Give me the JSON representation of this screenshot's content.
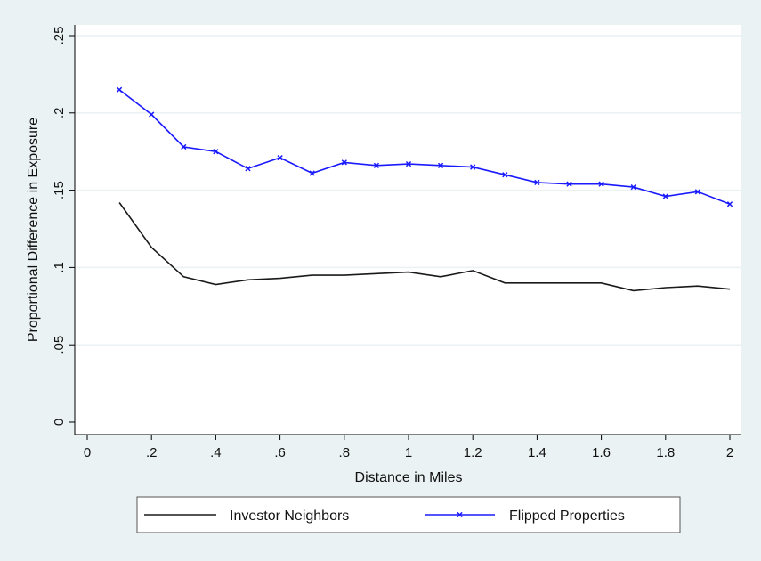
{
  "chart_data": {
    "type": "line",
    "title": "",
    "xlabel": "Distance in Miles",
    "ylabel": "Proportional Difference in Exposure",
    "xlim": [
      0,
      2
    ],
    "ylim": [
      0,
      0.25
    ],
    "x_ticks": [
      "0",
      ".2",
      ".4",
      ".6",
      ".8",
      "1",
      "1.2",
      "1.4",
      "1.6",
      "1.8",
      "2"
    ],
    "y_ticks": [
      "0",
      ".05",
      ".1",
      ".15",
      ".2",
      ".25"
    ],
    "grid": true,
    "legend_position": "bottom",
    "x": [
      0.1,
      0.2,
      0.3,
      0.4,
      0.5,
      0.6,
      0.7,
      0.8,
      0.9,
      1.0,
      1.1,
      1.2,
      1.3,
      1.4,
      1.5,
      1.6,
      1.7,
      1.8,
      1.9,
      2.0
    ],
    "series": [
      {
        "name": "Investor Neighbors",
        "color": "#1a1a1a",
        "marker": "none",
        "values": [
          0.142,
          0.113,
          0.094,
          0.089,
          0.092,
          0.093,
          0.095,
          0.095,
          0.096,
          0.097,
          0.094,
          0.098,
          0.09,
          0.09,
          0.09,
          0.09,
          0.085,
          0.087,
          0.088,
          0.086
        ]
      },
      {
        "name": "Flipped Properties",
        "color": "#1a1aff",
        "marker": "x",
        "values": [
          0.215,
          0.199,
          0.178,
          0.175,
          0.164,
          0.171,
          0.161,
          0.168,
          0.166,
          0.167,
          0.166,
          0.165,
          0.16,
          0.155,
          0.154,
          0.154,
          0.152,
          0.146,
          0.149,
          0.141
        ]
      }
    ]
  }
}
